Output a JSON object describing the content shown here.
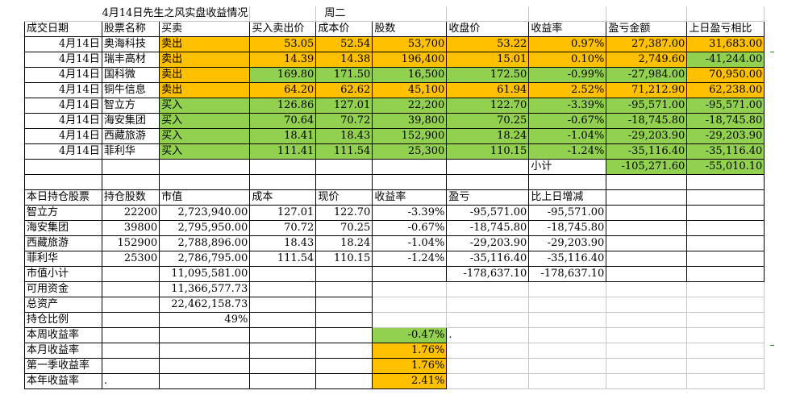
{
  "title": "4月14日先生之风实盘收益情况",
  "weekday": "周二",
  "trade_headers": [
    "成交日期",
    "股票名称",
    "买卖",
    "买入卖出价",
    "成本价",
    "股数",
    "收盘价",
    "收益率",
    "盈亏金额",
    "上日盈亏相比"
  ],
  "trades": [
    {
      "date": "4月14日",
      "name": "奥海科技",
      "side": "卖出",
      "price": "53.05",
      "cost": "52.54",
      "shares": "53,700",
      "close": "53.22",
      "ret": "0.97%",
      "pnl": "27,387.00",
      "vs_prev": "31,683.00"
    },
    {
      "date": "4月14日",
      "name": "瑞丰高材",
      "side": "卖出",
      "price": "14.39",
      "cost": "14.38",
      "shares": "196,400",
      "close": "15.01",
      "ret": "0.10%",
      "pnl": "2,749.60",
      "vs_prev": "-41,244.00"
    },
    {
      "date": "4月14日",
      "name": "国科微",
      "side": "卖出",
      "price": "169.80",
      "cost": "171.50",
      "shares": "16,500",
      "close": "172.50",
      "ret": "-0.99%",
      "pnl": "-27,984.00",
      "vs_prev": "70,950.00"
    },
    {
      "date": "4月14日",
      "name": "铜牛信息",
      "side": "卖出",
      "price": "64.20",
      "cost": "62.62",
      "shares": "45,100",
      "close": "61.94",
      "ret": "2.52%",
      "pnl": "71,212.90",
      "vs_prev": "62,238.00"
    },
    {
      "date": "4月14日",
      "name": "智立方",
      "side": "买入",
      "price": "126.86",
      "cost": "127.01",
      "shares": "22,200",
      "close": "122.70",
      "ret": "-3.39%",
      "pnl": "-95,571.00",
      "vs_prev": "-95,571.00"
    },
    {
      "date": "4月14日",
      "name": "海安集团",
      "side": "买入",
      "price": "70.64",
      "cost": "70.72",
      "shares": "39,800",
      "close": "70.25",
      "ret": "-0.67%",
      "pnl": "-18,745.80",
      "vs_prev": "-18,745.80"
    },
    {
      "date": "4月14日",
      "name": "西藏旅游",
      "side": "买入",
      "price": "18.41",
      "cost": "18.43",
      "shares": "152,900",
      "close": "18.24",
      "ret": "-1.04%",
      "pnl": "-29,203.90",
      "vs_prev": "-29,203.90"
    },
    {
      "date": "4月14日",
      "name": "菲利华",
      "side": "买入",
      "price": "111.41",
      "cost": "111.54",
      "shares": "25,300",
      "close": "110.15",
      "ret": "-1.24%",
      "pnl": "-35,116.40",
      "vs_prev": "-35,116.40"
    }
  ],
  "subtotal": {
    "label": "小计",
    "pnl": "-105,271.60",
    "vs_prev": "-55,010.10"
  },
  "hold_headers": [
    "本日持仓股票",
    "持仓股数",
    "市值",
    "成本",
    "现价",
    "收益率",
    "盈亏",
    "比上日增减"
  ],
  "holdings": [
    {
      "name": "智立方",
      "shares": "22200",
      "mv": "2,723,940.00",
      "cost": "127.01",
      "now": "122.70",
      "ret": "-3.39%",
      "pnl": "-95,571.00",
      "chg": "-95,571.00"
    },
    {
      "name": "海安集团",
      "shares": "39800",
      "mv": "2,795,950.00",
      "cost": "70.72",
      "now": "70.25",
      "ret": "-0.67%",
      "pnl": "-18,745.80",
      "chg": "-18,745.80"
    },
    {
      "name": "西藏旅游",
      "shares": "152900",
      "mv": "2,788,896.00",
      "cost": "18.43",
      "now": "18.24",
      "ret": "-1.04%",
      "pnl": "-29,203.90",
      "chg": "-29,203.90"
    },
    {
      "name": "菲利华",
      "shares": "25300",
      "mv": "2,786,795.00",
      "cost": "111.54",
      "now": "110.15",
      "ret": "-1.24%",
      "pnl": "-35,116.40",
      "chg": "-35,116.40"
    }
  ],
  "mv_subtotal": {
    "label": "市值小计",
    "mv": "11,095,581.00",
    "pnl": "-178,637.10",
    "chg": "-178,637.10"
  },
  "cash": {
    "label": "可用资金",
    "value": "11,366,577.73"
  },
  "total": {
    "label": "总资产",
    "value": "22,462,158.73"
  },
  "position_ratio": {
    "label": "持仓比例",
    "value": "49%"
  },
  "returns": [
    {
      "label": "本周收益率",
      "value": "-0.47%",
      "trail": "."
    },
    {
      "label": "本月收益率",
      "value": "1.76%"
    },
    {
      "label": "第一季收益率",
      "value": "1.76%"
    },
    {
      "label": "本年收益率",
      "value": "2.41%",
      "mark": "."
    }
  ],
  "colors": {
    "sell": "#ffc000",
    "buy": "#92d050"
  }
}
